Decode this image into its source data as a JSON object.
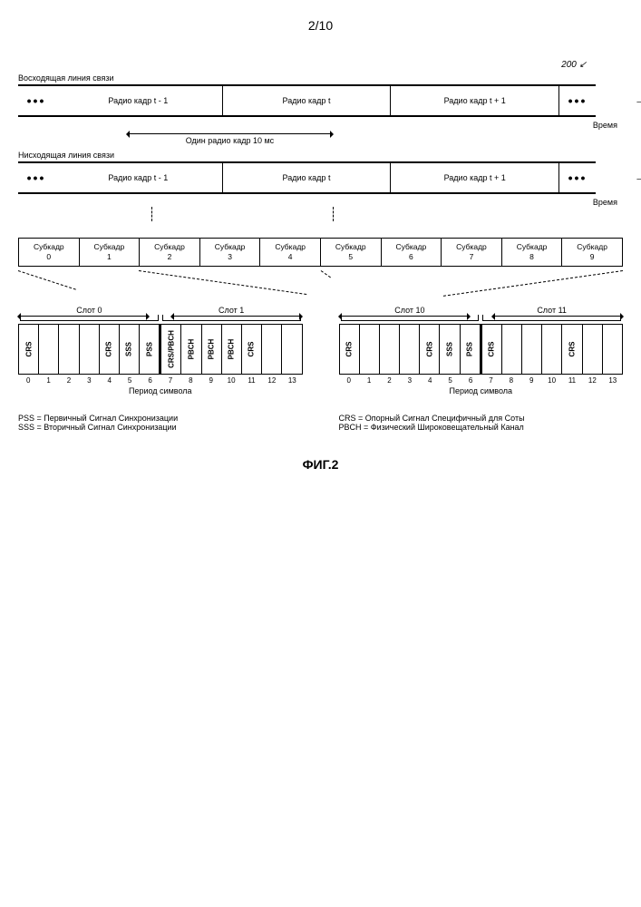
{
  "page_number": "2/10",
  "callout_ref": "200",
  "uplink_label": "Восходящая линия связи",
  "downlink_label": "Нисходящая линия связи",
  "time_label": "Время",
  "dots": "•••",
  "radio_frame_prev": "Радио кадр t - 1",
  "radio_frame_cur": "Радио кадр t",
  "radio_frame_next": "Радио кадр t + 1",
  "one_frame_label": "Один радио кадр 10 мс",
  "subframe_word": "Субкадр",
  "subframe_indices": [
    "0",
    "1",
    "2",
    "3",
    "4",
    "5",
    "6",
    "7",
    "8",
    "9"
  ],
  "slot_labels_left": [
    "Слот 0",
    "Слот 1"
  ],
  "slot_labels_right": [
    "Слот 10",
    "Слот 11"
  ],
  "symbol_period_label": "Период символа",
  "symbol_indices": [
    "0",
    "1",
    "2",
    "3",
    "4",
    "5",
    "6",
    "7",
    "8",
    "9",
    "10",
    "11",
    "12",
    "13"
  ],
  "slot0_symbols": [
    "CRS",
    "",
    "",
    "",
    "CRS",
    "SSS",
    "PSS",
    "CRS/PBCH",
    "PBCH",
    "PBCH",
    "PBCH",
    "CRS",
    "",
    ""
  ],
  "slot5_symbols": [
    "CRS",
    "",
    "",
    "",
    "CRS",
    "SSS",
    "PSS",
    "CRS",
    "",
    "",
    "",
    "CRS",
    "",
    ""
  ],
  "legend_pss": "PSS = Первичный Сигнал Синхронизации",
  "legend_sss": "SSS = Вторичный Сигнал Синхронизации",
  "legend_crs": "CRS = Опорный Сигнал Специфичный для Соты",
  "legend_pbch": "PBCH = Физический Широковещательный Канал",
  "figure_caption": "ФИГ.2",
  "colors": {
    "line": "#000000",
    "background": "#ffffff"
  }
}
